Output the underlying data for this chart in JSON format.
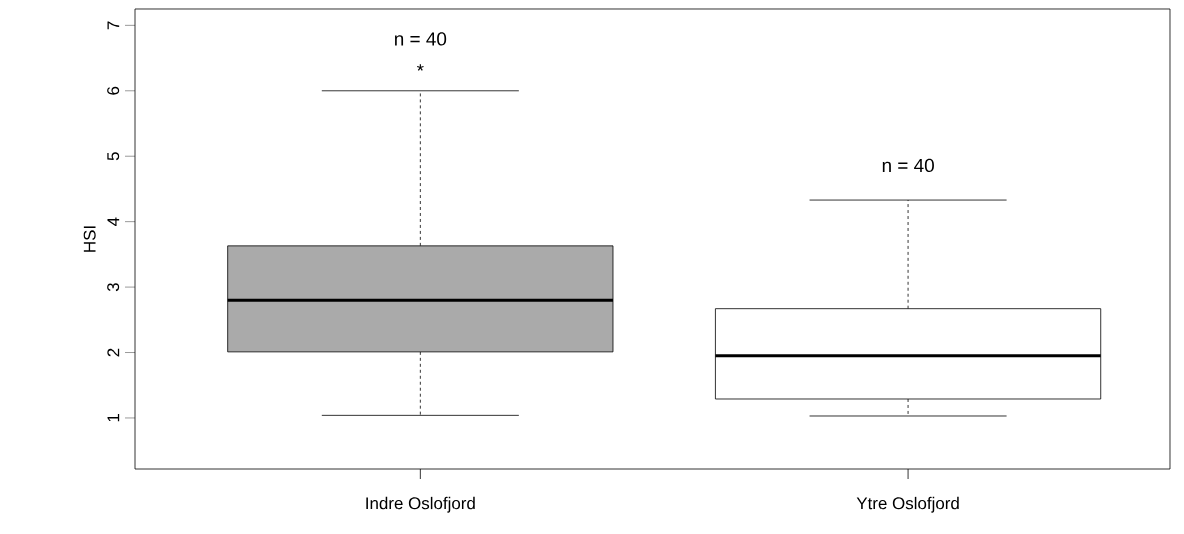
{
  "chart_data": {
    "type": "box",
    "ylabel": "HSI",
    "categories": [
      "Indre Oslofjord",
      "Ytre Oslofjord"
    ],
    "colors": [
      "#aaaaaa",
      "#ffffff"
    ],
    "boxes": [
      {
        "low": 1.04,
        "q1": 2.01,
        "median": 2.8,
        "q3": 3.63,
        "high": 6.0
      },
      {
        "low": 1.03,
        "q1": 1.29,
        "median": 1.95,
        "q3": 2.67,
        "high": 4.33
      }
    ],
    "ylim": [
      0.22,
      7.25
    ],
    "yticks": [
      1,
      2,
      3,
      4,
      5,
      6,
      7
    ],
    "annotations": [
      "n = 40",
      "*",
      "n = 40"
    ]
  }
}
